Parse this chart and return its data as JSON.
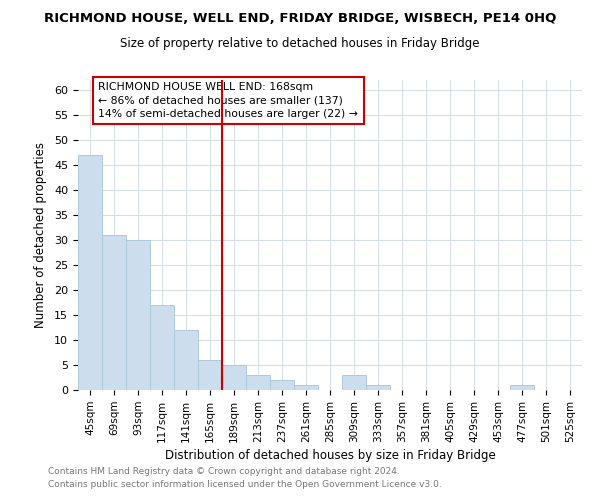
{
  "title": "RICHMOND HOUSE, WELL END, FRIDAY BRIDGE, WISBECH, PE14 0HQ",
  "subtitle": "Size of property relative to detached houses in Friday Bridge",
  "xlabel": "Distribution of detached houses by size in Friday Bridge",
  "ylabel": "Number of detached properties",
  "bar_color": "#ccdded",
  "bar_edge_color": "#b0c8dc",
  "categories": [
    "45sqm",
    "69sqm",
    "93sqm",
    "117sqm",
    "141sqm",
    "165sqm",
    "189sqm",
    "213sqm",
    "237sqm",
    "261sqm",
    "285sqm",
    "309sqm",
    "333sqm",
    "357sqm",
    "381sqm",
    "405sqm",
    "429sqm",
    "453sqm",
    "477sqm",
    "501sqm",
    "525sqm"
  ],
  "values": [
    47,
    31,
    30,
    17,
    12,
    6,
    5,
    3,
    2,
    1,
    0,
    3,
    1,
    0,
    0,
    0,
    0,
    0,
    1,
    0,
    0
  ],
  "vline_x": 5.5,
  "vline_color": "#cc0000",
  "annotation_line1": "RICHMOND HOUSE WELL END: 168sqm",
  "annotation_line2": "← 86% of detached houses are smaller (137)",
  "annotation_line3": "14% of semi-detached houses are larger (22) →",
  "ylim": [
    0,
    62
  ],
  "yticks": [
    0,
    5,
    10,
    15,
    20,
    25,
    30,
    35,
    40,
    45,
    50,
    55,
    60
  ],
  "footer1": "Contains HM Land Registry data © Crown copyright and database right 2024.",
  "footer2": "Contains public sector information licensed under the Open Government Licence v3.0.",
  "background_color": "#ffffff",
  "grid_color": "#d4dfe8"
}
